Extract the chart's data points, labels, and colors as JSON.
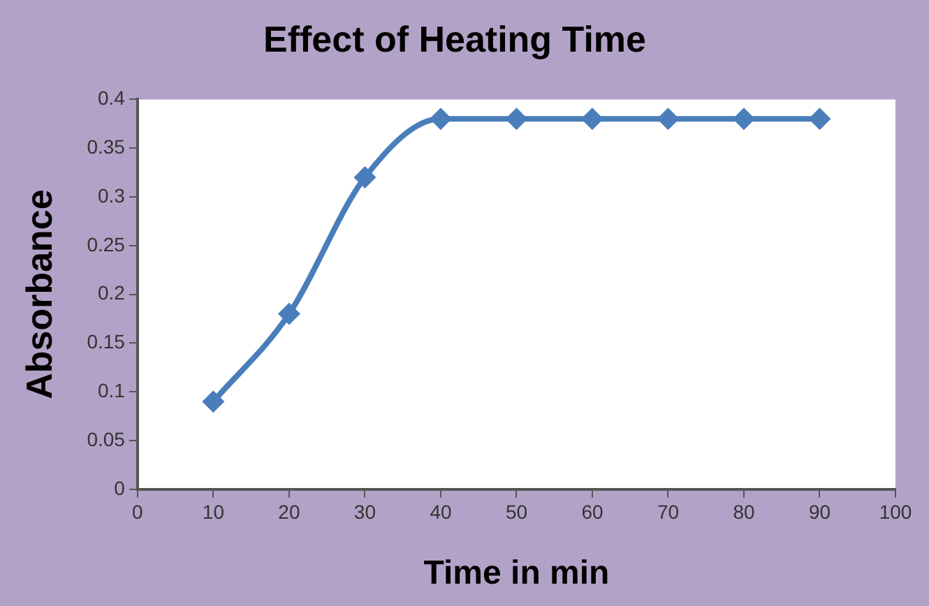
{
  "chart_data": {
    "type": "line",
    "title": "Effect of Heating Time",
    "xlabel": "Time in min",
    "ylabel": "Absorbance",
    "x": [
      10,
      20,
      30,
      40,
      50,
      60,
      70,
      80,
      90
    ],
    "series": [
      {
        "color": "#4a7ebb",
        "values": [
          0.09,
          0.18,
          0.32,
          0.38,
          0.38,
          0.38,
          0.38,
          0.38,
          0.38
        ]
      }
    ],
    "xlim": [
      0,
      100
    ],
    "xticks": [
      0,
      10,
      20,
      30,
      40,
      50,
      60,
      70,
      80,
      90,
      100
    ],
    "ylim": [
      0,
      0.4
    ],
    "yticks": [
      0,
      0.05,
      0.1,
      0.15,
      0.2,
      0.25,
      0.3,
      0.35,
      0.4
    ],
    "grid": false,
    "legend": false,
    "marker": "diamond",
    "line_style": "solid"
  }
}
